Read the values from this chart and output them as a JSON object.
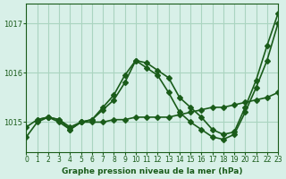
{
  "title": "Graphe pression niveau de la mer (hPa)",
  "background_color": "#d8f0e8",
  "grid_color": "#aad4c0",
  "line_color": "#1a5c1a",
  "xlim": [
    0,
    23
  ],
  "ylim": [
    1014.4,
    1017.4
  ],
  "yticks": [
    1015,
    1016,
    1017
  ],
  "xticks": [
    0,
    1,
    2,
    3,
    4,
    5,
    6,
    7,
    8,
    9,
    10,
    11,
    12,
    13,
    14,
    15,
    16,
    17,
    18,
    19,
    20,
    21,
    22,
    23
  ],
  "series": [
    {
      "x": [
        0,
        1,
        2,
        3,
        4,
        5,
        6,
        7,
        8,
        9,
        10,
        11,
        12,
        13,
        14,
        15,
        16,
        17,
        18,
        19,
        20,
        21,
        22,
        23
      ],
      "y": [
        1014.7,
        1015.0,
        1015.1,
        1015.05,
        1014.85,
        1015.0,
        1015.05,
        1015.3,
        1015.55,
        1015.95,
        1016.25,
        1016.2,
        1016.05,
        1015.9,
        1015.5,
        1015.3,
        1015.1,
        1014.85,
        1014.75,
        1014.8,
        1015.3,
        1015.85,
        1016.55,
        1017.2
      ]
    },
    {
      "x": [
        0,
        1,
        2,
        3,
        4,
        5,
        6,
        7,
        8,
        9,
        10,
        11,
        12,
        13,
        14,
        15,
        16,
        17,
        18,
        19,
        20,
        21,
        22,
        23
      ],
      "y": [
        1014.9,
        1015.05,
        1015.1,
        1015.05,
        1014.9,
        1015.0,
        1015.05,
        1015.25,
        1015.45,
        1015.8,
        1016.25,
        1016.1,
        1015.95,
        1015.6,
        1015.2,
        1015.0,
        1014.85,
        1014.7,
        1014.65,
        1014.75,
        1015.2,
        1015.7,
        1016.25,
        1017.0
      ]
    },
    {
      "x": [
        1,
        2,
        3,
        4,
        5,
        6,
        7,
        8,
        9,
        10,
        11,
        12,
        13,
        14,
        15,
        16,
        17,
        18,
        19,
        20,
        21,
        22,
        23
      ],
      "y": [
        1015.05,
        1015.1,
        1015.0,
        1014.85,
        1015.0,
        1015.0,
        1015.0,
        1015.05,
        1015.05,
        1015.1,
        1015.1,
        1015.1,
        1015.1,
        1015.15,
        1015.2,
        1015.25,
        1015.3,
        1015.3,
        1015.35,
        1015.4,
        1015.45,
        1015.5,
        1015.6
      ]
    }
  ]
}
